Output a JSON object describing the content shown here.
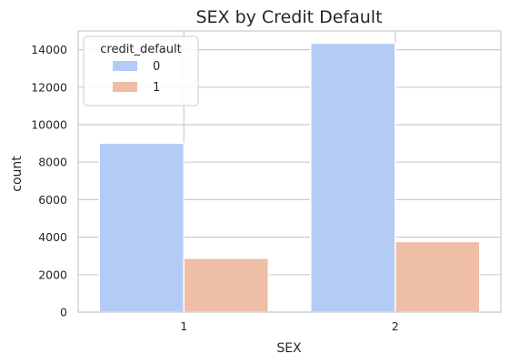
{
  "chart_data": {
    "type": "bar",
    "title": "SEX by Credit Default",
    "xlabel": "SEX",
    "ylabel": "count",
    "categories": [
      "1",
      "2"
    ],
    "series": [
      {
        "name": "0",
        "values": [
          9015,
          14349
        ],
        "color": "#b4cbf5"
      },
      {
        "name": "1",
        "values": [
          2873,
          3763
        ],
        "color": "#eebea6"
      }
    ],
    "ylim": [
      0,
      15000
    ],
    "yticks": [
      0,
      2000,
      4000,
      6000,
      8000,
      10000,
      12000,
      14000
    ],
    "grid": true,
    "legend": {
      "title": "credit_default",
      "placement": "top-left"
    }
  }
}
